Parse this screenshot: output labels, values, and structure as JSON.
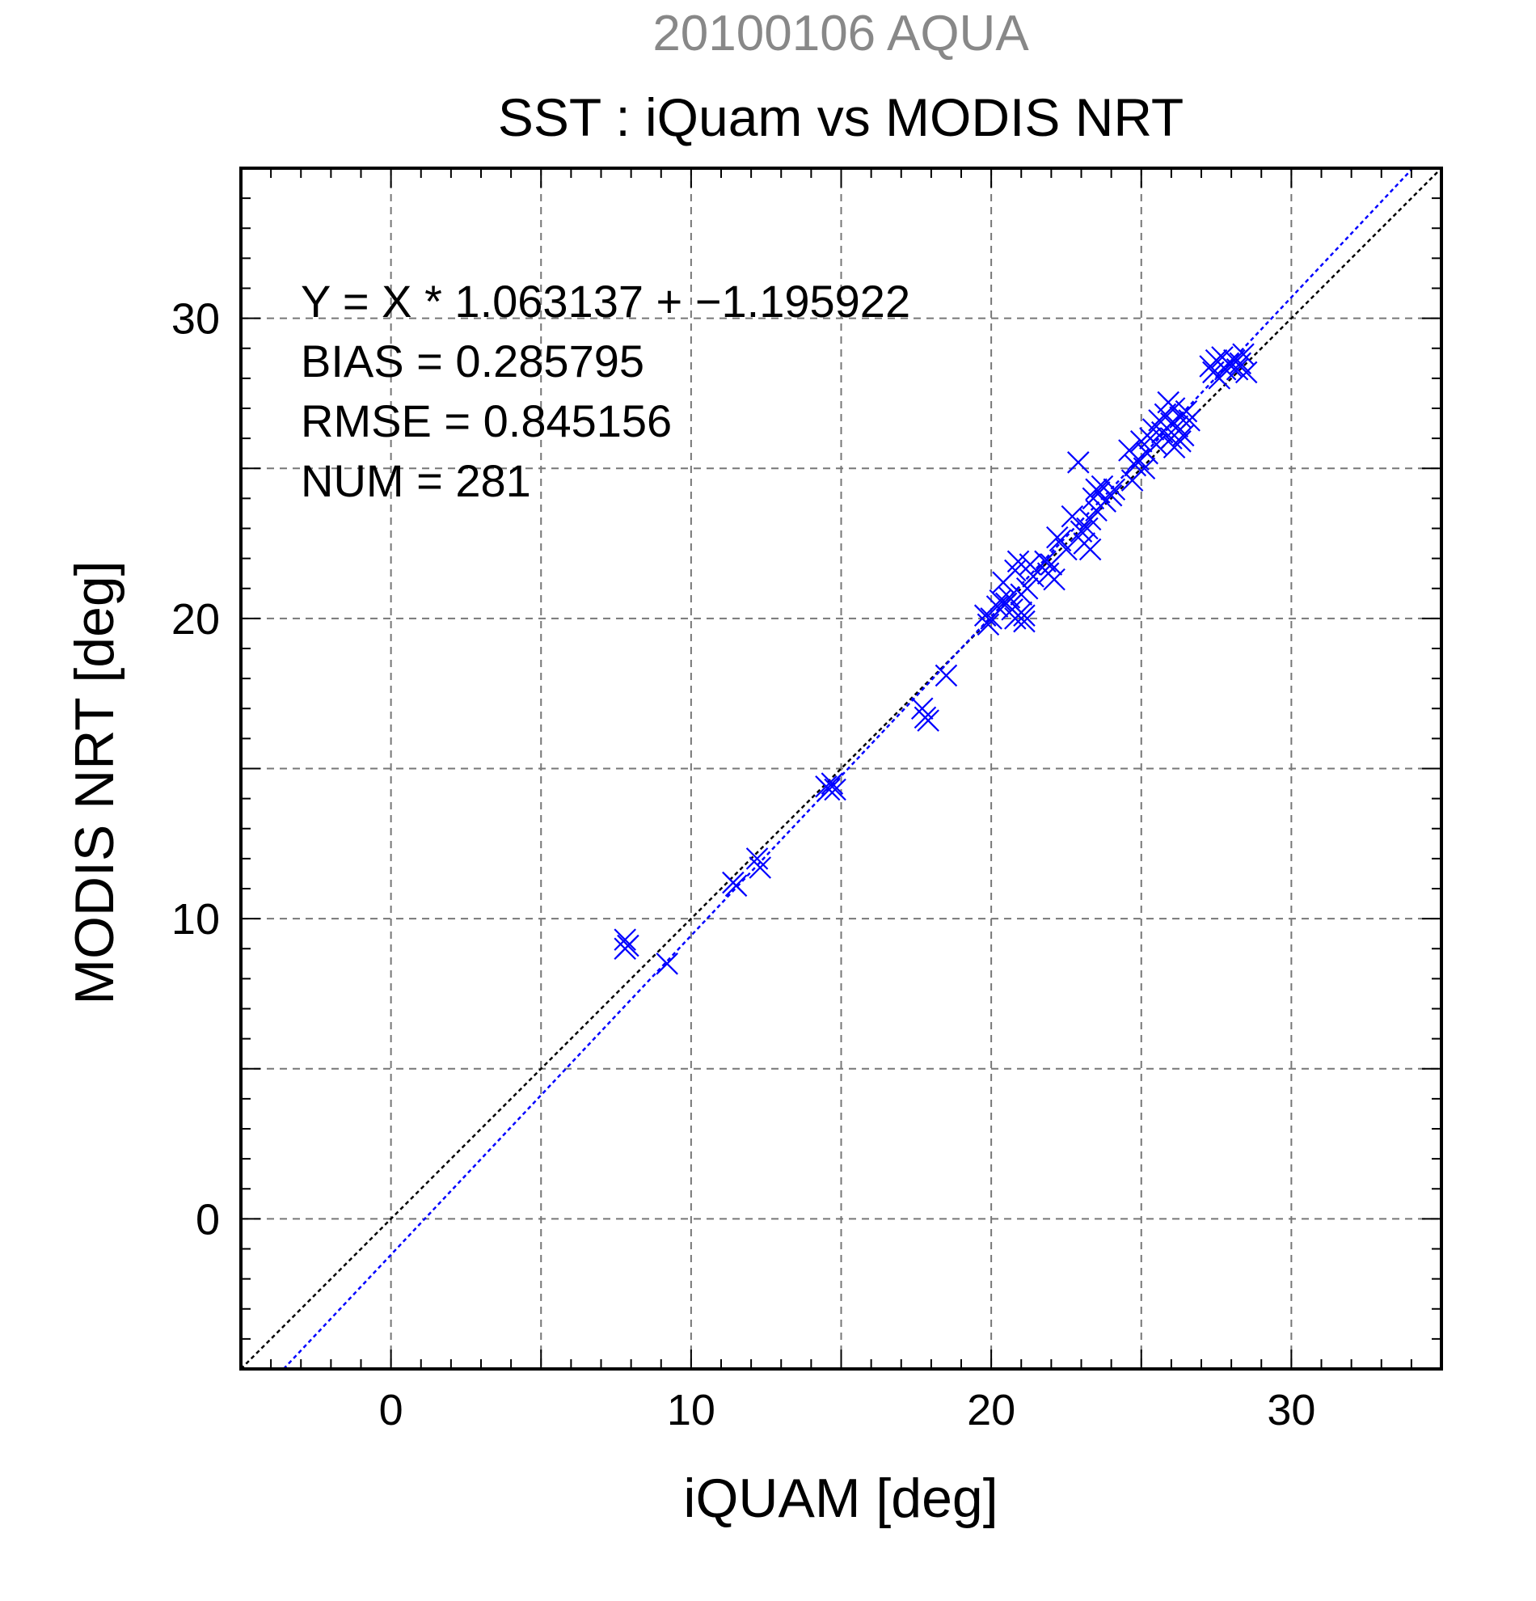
{
  "chart_data": {
    "type": "scatter",
    "suptitle": "20100106 AQUA",
    "title": "SST : iQuam vs MODIS NRT",
    "xlabel": "iQUAM [deg]",
    "ylabel": "MODIS NRT [deg]",
    "xlim": [
      -5,
      35
    ],
    "ylim": [
      -5,
      35
    ],
    "xticks": [
      0,
      10,
      20,
      30
    ],
    "yticks": [
      0,
      10,
      20,
      30
    ],
    "xtick_labels": [
      "0",
      "10",
      "20",
      "30"
    ],
    "ytick_labels": [
      "0",
      "10",
      "20",
      "30"
    ],
    "grid": true,
    "stats": {
      "equation": "Y = X * 1.063137 + −1.195922",
      "bias": "BIAS = 0.285795",
      "rmse": "RMSE = 0.845156",
      "num": "NUM = 281"
    },
    "lines": [
      {
        "slope": 1,
        "intercept": 0,
        "color": "#000000",
        "style": "dotted"
      },
      {
        "slope": 1.063137,
        "intercept": -1.195922,
        "color": "#0000ff",
        "style": "dotted"
      }
    ],
    "marker": "x",
    "marker_color": "#0000ff",
    "points": [
      [
        7.8,
        9.3
      ],
      [
        7.9,
        9.1
      ],
      [
        7.8,
        9.0
      ],
      [
        9.2,
        8.5
      ],
      [
        11.4,
        11.2
      ],
      [
        11.5,
        11.1
      ],
      [
        12.2,
        12.0
      ],
      [
        12.3,
        11.7
      ],
      [
        14.5,
        14.4
      ],
      [
        14.6,
        14.3
      ],
      [
        14.8,
        14.3
      ],
      [
        14.7,
        14.5
      ],
      [
        17.7,
        17.0
      ],
      [
        17.8,
        16.7
      ],
      [
        17.9,
        16.6
      ],
      [
        18.5,
        18.1
      ],
      [
        19.8,
        20.1
      ],
      [
        19.9,
        19.8
      ],
      [
        20.0,
        20.0
      ],
      [
        20.2,
        20.4
      ],
      [
        20.3,
        20.6
      ],
      [
        20.4,
        21.2
      ],
      [
        20.5,
        20.5
      ],
      [
        20.6,
        20.7
      ],
      [
        20.7,
        20.3
      ],
      [
        20.8,
        20.0
      ],
      [
        20.8,
        21.6
      ],
      [
        20.9,
        21.9
      ],
      [
        21.0,
        20.2
      ],
      [
        21.0,
        20.8
      ],
      [
        21.1,
        19.9
      ],
      [
        21.1,
        20.1
      ],
      [
        21.2,
        21.0
      ],
      [
        21.3,
        21.8
      ],
      [
        21.4,
        21.4
      ],
      [
        21.8,
        21.9
      ],
      [
        21.9,
        21.5
      ],
      [
        22.0,
        21.8
      ],
      [
        22.1,
        21.3
      ],
      [
        22.2,
        22.7
      ],
      [
        22.3,
        22.6
      ],
      [
        22.5,
        22.3
      ],
      [
        22.7,
        23.4
      ],
      [
        22.9,
        25.2
      ],
      [
        23.0,
        22.9
      ],
      [
        23.1,
        22.5
      ],
      [
        23.2,
        23.0
      ],
      [
        23.3,
        23.3
      ],
      [
        23.3,
        22.3
      ],
      [
        23.4,
        24.0
      ],
      [
        23.5,
        24.3
      ],
      [
        23.5,
        23.6
      ],
      [
        23.6,
        24.2
      ],
      [
        23.7,
        24.4
      ],
      [
        23.8,
        23.9
      ],
      [
        24.0,
        24.1
      ],
      [
        24.1,
        24.3
      ],
      [
        24.6,
        25.6
      ],
      [
        24.7,
        24.6
      ],
      [
        24.8,
        25.1
      ],
      [
        24.9,
        25.3
      ],
      [
        25.0,
        25.9
      ],
      [
        25.1,
        25.0
      ],
      [
        25.2,
        25.5
      ],
      [
        25.3,
        26.0
      ],
      [
        25.4,
        26.3
      ],
      [
        25.5,
        25.8
      ],
      [
        25.6,
        26.6
      ],
      [
        25.7,
        26.2
      ],
      [
        25.8,
        26.8
      ],
      [
        25.9,
        27.2
      ],
      [
        26.0,
        26.0
      ],
      [
        26.0,
        26.5
      ],
      [
        26.1,
        25.7
      ],
      [
        26.1,
        27.0
      ],
      [
        26.2,
        26.4
      ],
      [
        26.3,
        26.7
      ],
      [
        26.3,
        25.9
      ],
      [
        26.4,
        26.1
      ],
      [
        26.5,
        26.9
      ],
      [
        26.6,
        26.6
      ],
      [
        27.3,
        28.4
      ],
      [
        27.4,
        28.2
      ],
      [
        27.5,
        28.6
      ],
      [
        27.6,
        28.0
      ],
      [
        27.7,
        28.7
      ],
      [
        27.8,
        28.3
      ],
      [
        27.9,
        28.5
      ],
      [
        28.0,
        28.4
      ],
      [
        28.1,
        28.6
      ],
      [
        28.2,
        28.3
      ],
      [
        28.3,
        28.5
      ],
      [
        28.4,
        28.8
      ],
      [
        28.5,
        28.2
      ]
    ]
  }
}
